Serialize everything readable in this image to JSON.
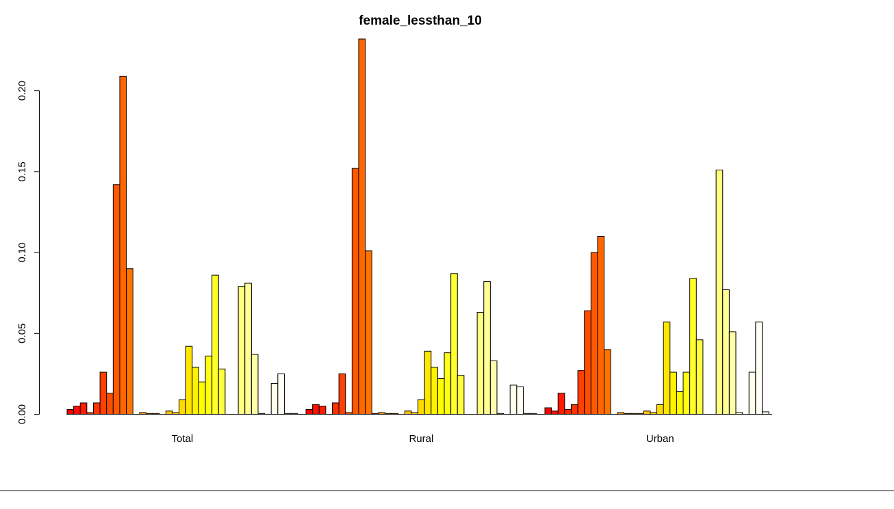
{
  "chart_data": {
    "type": "bar",
    "title": "female_lessthan_10",
    "xlabel": "",
    "ylabel": "",
    "ylim": [
      0,
      0.232
    ],
    "yticks": [
      0.0,
      0.05,
      0.1,
      0.15,
      0.2
    ],
    "ytick_labels": [
      "0.00",
      "0.05",
      "0.10",
      "0.15",
      "0.20"
    ],
    "grid": false,
    "bar_outline": "#000000",
    "groups": [
      {
        "label": "Total",
        "values": [
          0.003,
          0.005,
          0.007,
          0.001,
          0.007,
          0.026,
          0.013,
          0.142,
          0.209,
          0.09,
          0.0,
          0.001,
          0.0005,
          0.0005,
          0.0,
          0.002,
          0.001,
          0.009,
          0.042,
          0.029,
          0.02,
          0.036,
          0.086,
          0.028,
          0.0,
          0.0,
          0.079,
          0.081,
          0.037,
          0.0005,
          0.0,
          0.019,
          0.025,
          0.0005,
          0.0005
        ]
      },
      {
        "label": "Rural",
        "values": [
          0.003,
          0.006,
          0.005,
          0.0,
          0.007,
          0.025,
          0.001,
          0.152,
          0.232,
          0.101,
          0.0005,
          0.001,
          0.0005,
          0.0005,
          0.0,
          0.002,
          0.001,
          0.009,
          0.039,
          0.029,
          0.022,
          0.038,
          0.087,
          0.024,
          0.0,
          0.0,
          0.063,
          0.082,
          0.033,
          0.0005,
          0.0,
          0.018,
          0.017,
          0.0005,
          0.0005
        ]
      },
      {
        "label": "Urban",
        "values": [
          0.004,
          0.002,
          0.013,
          0.003,
          0.006,
          0.027,
          0.064,
          0.1,
          0.11,
          0.04,
          0.0,
          0.001,
          0.0005,
          0.0005,
          0.0005,
          0.002,
          0.001,
          0.006,
          0.057,
          0.026,
          0.014,
          0.026,
          0.084,
          0.046,
          0.0,
          0.0,
          0.151,
          0.077,
          0.051,
          0.001,
          0.0,
          0.026,
          0.057,
          0.0015,
          0.0
        ]
      }
    ],
    "colors": [
      "#FF0000",
      "#FF0D00",
      "#FF1A00",
      "#FF2600",
      "#FF3300",
      "#FF4000",
      "#FF4D00",
      "#FF5900",
      "#FF6600",
      "#FF7300",
      "#FF8000",
      "#FF8C00",
      "#FF9900",
      "#FFA600",
      "#FFB300",
      "#FFBF00",
      "#FFCC00",
      "#FFD900",
      "#FFE600",
      "#FFF200",
      "#FFFF00",
      "#FFFF15",
      "#FFFF2B",
      "#FFFF40",
      "#FFFF55",
      "#FFFF6A",
      "#FFFF80",
      "#FFFF95",
      "#FFFFAA",
      "#FFFFBF",
      "#FFFFD5",
      "#FFFFEA",
      "#FFFFF5",
      "#FFFFFA",
      "#FFFFFF"
    ]
  }
}
